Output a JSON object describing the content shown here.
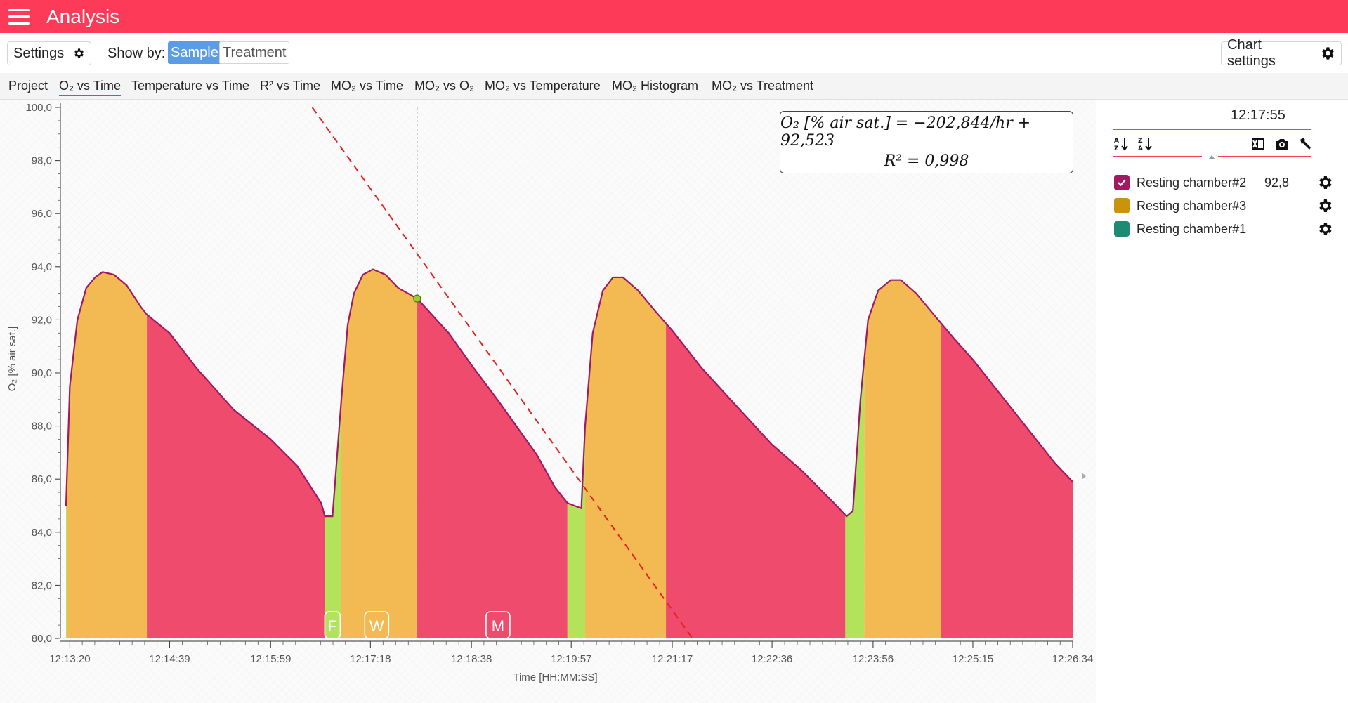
{
  "header": {
    "title": "Analysis"
  },
  "toolbar": {
    "settings_label": "Settings",
    "show_by_label": "Show by:",
    "show_by_options": [
      "Sample",
      "Treatment"
    ],
    "show_by_selected": "Sample",
    "chart_settings_label": "Chart settings"
  },
  "tabs": [
    {
      "label": "Project",
      "active": false
    },
    {
      "label": "O₂ vs Time",
      "active": true
    },
    {
      "label": "Temperature vs Time",
      "active": false
    },
    {
      "label": "R² vs Time",
      "active": false
    },
    {
      "label": "MO₂ vs Time",
      "active": false
    },
    {
      "label": "MO₂ vs O₂",
      "active": false
    },
    {
      "label": "MO₂ vs Temperature",
      "active": false
    },
    {
      "label": "MO₂ Histogram",
      "active": false
    },
    {
      "label": "MO₂ vs Treatment",
      "active": false
    }
  ],
  "equation": {
    "line1": "O₂ [% air sat.] = −202,844/hr + 92,523",
    "line2": "R² = 0,998"
  },
  "sidebar": {
    "time": "12:17:55",
    "legend": [
      {
        "label": "Resting chamber#2",
        "color": "#a01a63",
        "checked": true,
        "value": "92,8"
      },
      {
        "label": "Resting chamber#3",
        "color": "#c9930e",
        "checked": false,
        "value": ""
      },
      {
        "label": "Resting chamber#1",
        "color": "#1d8b74",
        "checked": false,
        "value": ""
      }
    ],
    "icons": [
      "sort-ascending-icon",
      "sort-descending-icon",
      "excel-export-icon",
      "camera-icon",
      "wrench-icon"
    ]
  },
  "chart_data": {
    "type": "area",
    "title": "",
    "xlabel": "Time [HH:MM:SS]",
    "ylabel": "O₂ [% air sat.]",
    "ylim": [
      80,
      100
    ],
    "xlim": [
      "12:13:17",
      "12:26:34"
    ],
    "x_tick_labels": [
      "12:13:20",
      "12:14:39",
      "12:15:59",
      "12:17:18",
      "12:18:38",
      "12:19:57",
      "12:21:17",
      "12:22:36",
      "12:23:56",
      "12:25:15",
      "12:26:34"
    ],
    "y_tick_labels": [
      "80,0",
      "82,0",
      "84,0",
      "86,0",
      "88,0",
      "90,0",
      "92,0",
      "94,0",
      "96,0",
      "98,0",
      "100,0"
    ],
    "series": [
      {
        "name": "Resting chamber#2",
        "color": "#a01a63",
        "points": [
          [
            "12:13:17",
            85.0
          ],
          [
            "12:13:20",
            89.5
          ],
          [
            "12:13:26",
            92.0
          ],
          [
            "12:13:33",
            93.2
          ],
          [
            "12:13:40",
            93.6
          ],
          [
            "12:13:46",
            93.8
          ],
          [
            "12:13:55",
            93.7
          ],
          [
            "12:14:05",
            93.3
          ],
          [
            "12:14:16",
            92.5
          ],
          [
            "12:14:21",
            92.2
          ],
          [
            "12:14:39",
            91.5
          ],
          [
            "12:15:00",
            90.2
          ],
          [
            "12:15:30",
            88.6
          ],
          [
            "12:15:59",
            87.5
          ],
          [
            "12:16:20",
            86.5
          ],
          [
            "12:16:39",
            85.1
          ],
          [
            "12:16:42",
            84.6
          ],
          [
            "12:16:48",
            84.6
          ],
          [
            "12:16:55",
            89.0
          ],
          [
            "12:17:00",
            91.8
          ],
          [
            "12:17:05",
            93.0
          ],
          [
            "12:17:12",
            93.7
          ],
          [
            "12:17:20",
            93.9
          ],
          [
            "12:17:30",
            93.7
          ],
          [
            "12:17:40",
            93.2
          ],
          [
            "12:17:55",
            92.8
          ],
          [
            "12:18:20",
            91.5
          ],
          [
            "12:18:38",
            90.3
          ],
          [
            "12:19:00",
            88.9
          ],
          [
            "12:19:30",
            86.9
          ],
          [
            "12:19:44",
            85.7
          ],
          [
            "12:19:54",
            85.1
          ],
          [
            "12:20:05",
            84.9
          ],
          [
            "12:20:08",
            88.0
          ],
          [
            "12:20:14",
            91.5
          ],
          [
            "12:20:22",
            93.1
          ],
          [
            "12:20:30",
            93.6
          ],
          [
            "12:20:38",
            93.6
          ],
          [
            "12:20:50",
            93.1
          ],
          [
            "12:21:04",
            92.3
          ],
          [
            "12:21:17",
            91.6
          ],
          [
            "12:21:40",
            90.2
          ],
          [
            "12:22:05",
            88.9
          ],
          [
            "12:22:36",
            87.3
          ],
          [
            "12:23:00",
            86.3
          ],
          [
            "12:23:25",
            85.1
          ],
          [
            "12:23:35",
            84.6
          ],
          [
            "12:23:40",
            84.8
          ],
          [
            "12:23:46",
            89.0
          ],
          [
            "12:23:52",
            92.0
          ],
          [
            "12:24:00",
            93.1
          ],
          [
            "12:24:10",
            93.5
          ],
          [
            "12:24:18",
            93.5
          ],
          [
            "12:24:30",
            93.0
          ],
          [
            "12:24:44",
            92.2
          ],
          [
            "12:25:00",
            91.3
          ],
          [
            "12:25:15",
            90.5
          ],
          [
            "12:25:40",
            89.0
          ],
          [
            "12:26:00",
            87.8
          ],
          [
            "12:26:20",
            86.6
          ],
          [
            "12:26:34",
            85.9
          ]
        ]
      }
    ],
    "phases": [
      {
        "type": "flush",
        "color": "#b3e35a",
        "start": "12:13:17",
        "end": "12:13:18"
      },
      {
        "type": "wait",
        "color": "#f3b952",
        "start": "12:13:18",
        "end": "12:14:21"
      },
      {
        "type": "measure",
        "color": "#ef4b6c",
        "start": "12:14:21",
        "end": "12:16:42"
      },
      {
        "type": "flush",
        "color": "#b3e35a",
        "start": "12:16:42",
        "end": "12:16:55"
      },
      {
        "type": "wait",
        "color": "#f3b952",
        "start": "12:16:55",
        "end": "12:17:55"
      },
      {
        "type": "measure",
        "color": "#ef4b6c",
        "start": "12:17:55",
        "end": "12:19:54"
      },
      {
        "type": "flush",
        "color": "#b3e35a",
        "start": "12:19:54",
        "end": "12:20:08"
      },
      {
        "type": "wait",
        "color": "#f3b952",
        "start": "12:20:08",
        "end": "12:21:12"
      },
      {
        "type": "measure",
        "color": "#ef4b6c",
        "start": "12:21:12",
        "end": "12:23:34"
      },
      {
        "type": "flush",
        "color": "#b3e35a",
        "start": "12:23:34",
        "end": "12:23:49"
      },
      {
        "type": "wait",
        "color": "#f3b952",
        "start": "12:23:49",
        "end": "12:24:50"
      },
      {
        "type": "measure",
        "color": "#ef4b6c",
        "start": "12:24:50",
        "end": "12:26:34"
      }
    ],
    "phase_markers": [
      {
        "label": "F",
        "x": "12:16:48"
      },
      {
        "label": "W",
        "x": "12:17:23"
      },
      {
        "label": "M",
        "x": "12:18:59"
      }
    ],
    "regression_line": {
      "color": "#e62020",
      "start": [
        "12:16:32",
        100.0
      ],
      "end": [
        "12:21:33",
        80.0
      ]
    },
    "cursor": {
      "x": "12:17:55",
      "y": 92.8,
      "color": "#9acd32"
    }
  }
}
